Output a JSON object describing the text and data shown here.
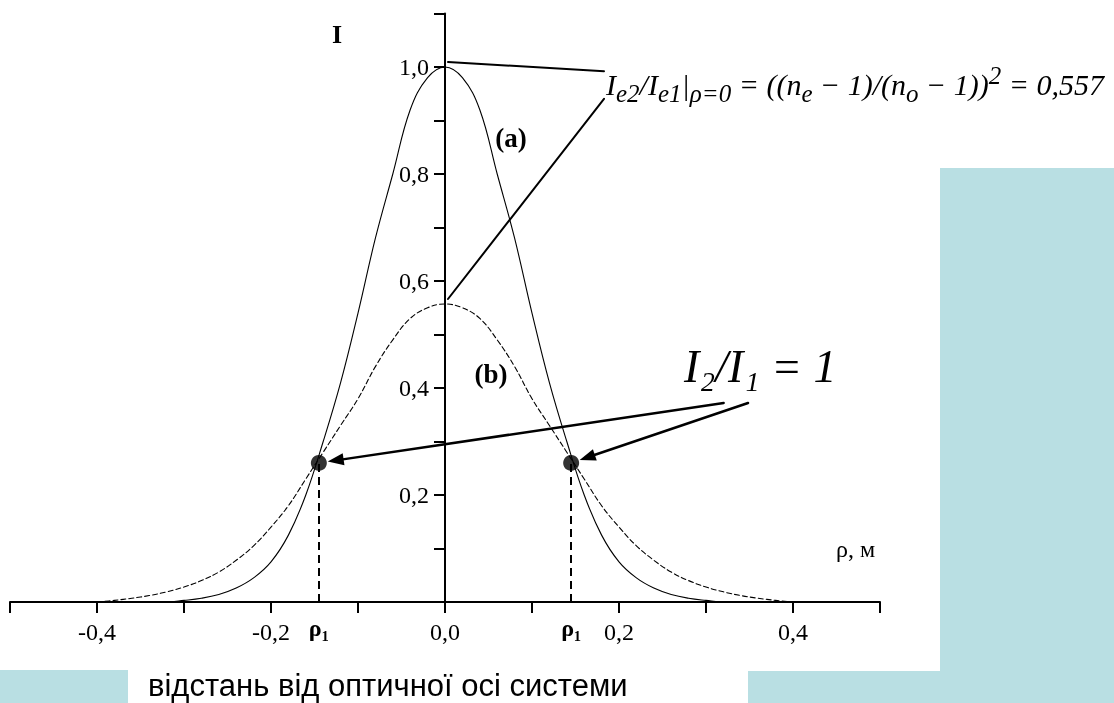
{
  "chart_data": {
    "type": "line",
    "xlabel": "ρ, м",
    "ylabel": "I",
    "annotations": [
      "I$_{e2}$/I$_{e1}$|$_{ρ=0}$ = ((n$_{e}$ − 1)/(n$_{o}$ − 1))$^{2}$ = 0,557",
      "I₂/I₁ = 1",
      "відстань від оптичної осі системи"
    ],
    "x": [
      -0.4,
      -0.38,
      -0.36,
      -0.34,
      -0.32,
      -0.3,
      -0.28,
      -0.26,
      -0.24,
      -0.22,
      -0.2,
      -0.18,
      -0.16,
      -0.14,
      -0.12,
      -0.1,
      -0.08,
      -0.06,
      -0.04,
      -0.02,
      0,
      0.02,
      0.04,
      0.06,
      0.08,
      0.1,
      0.12,
      0.14,
      0.16,
      0.18,
      0.2,
      0.22,
      0.24,
      0.26,
      0.28,
      0.3,
      0.32,
      0.34,
      0.36,
      0.38,
      0.4
    ],
    "series": [
      {
        "name": "(a)",
        "color": "#000000",
        "line_style": "solid",
        "values": [
          0,
          0,
          0,
          0,
          0,
          0.003,
          0.007,
          0.014,
          0.026,
          0.045,
          0.075,
          0.125,
          0.2,
          0.3,
          0.41,
          0.54,
          0.68,
          0.8,
          0.92,
          0.98,
          1,
          0.98,
          0.92,
          0.8,
          0.68,
          0.54,
          0.41,
          0.3,
          0.2,
          0.125,
          0.075,
          0.045,
          0.026,
          0.014,
          0.007,
          0.003,
          0,
          0,
          0,
          0,
          0
        ]
      },
      {
        "name": "(b)",
        "color": "#000000",
        "line_style": "dashed",
        "values": [
          0,
          0.003,
          0.007,
          0.012,
          0.019,
          0.028,
          0.04,
          0.056,
          0.078,
          0.105,
          0.14,
          0.18,
          0.23,
          0.28,
          0.33,
          0.38,
          0.44,
          0.49,
          0.53,
          0.55,
          0.557,
          0.55,
          0.53,
          0.49,
          0.44,
          0.38,
          0.33,
          0.28,
          0.23,
          0.18,
          0.14,
          0.105,
          0.078,
          0.056,
          0.04,
          0.028,
          0.019,
          0.012,
          0.007,
          0.003,
          0
        ]
      },
      {
        "type": "scatter",
        "color": "#000000",
        "marker": "circle",
        "x": [
          -0.145,
          0.145
        ],
        "values": [
          0.26,
          0.26
        ]
      }
    ],
    "ref_lines": [
      {
        "axis": "x",
        "value": -0.145,
        "label": "ρ₁",
        "color": "#000000",
        "line_style": "dashed"
      },
      {
        "axis": "x",
        "value": 0.145,
        "label": "ρ₁",
        "color": "#000000",
        "line_style": "dashed"
      }
    ],
    "xlim": [
      -0.5,
      0.5
    ],
    "xticks": [
      {
        "value": -0.5,
        "label": null
      },
      {
        "value": -0.4,
        "label": "-0,4"
      },
      {
        "value": -0.3,
        "label": null
      },
      {
        "value": -0.2,
        "label": "-0,2"
      },
      {
        "value": -0.1,
        "label": null
      },
      {
        "value": 0,
        "label": "0,0"
      },
      {
        "value": 0.1,
        "label": null
      },
      {
        "value": 0.2,
        "label": "0,2"
      },
      {
        "value": 0.3,
        "label": null
      },
      {
        "value": 0.4,
        "label": "0,4"
      },
      {
        "value": 0.5,
        "label": null
      }
    ],
    "ylim": [
      0,
      1.1
    ],
    "yticks": [
      {
        "value": 0.1,
        "label": null
      },
      {
        "value": 0.2,
        "label": "0,2"
      },
      {
        "value": 0.3,
        "label": null
      },
      {
        "value": 0.4,
        "label": "0,4"
      },
      {
        "value": 0.5,
        "label": null
      },
      {
        "value": 0.6,
        "label": "0,6"
      },
      {
        "value": 0.7,
        "label": null
      },
      {
        "value": 0.8,
        "label": "0,8"
      },
      {
        "value": 0.9,
        "label": null
      },
      {
        "value": 1,
        "label": "1,0"
      },
      {
        "value": 1.1,
        "label": null
      }
    ]
  }
}
